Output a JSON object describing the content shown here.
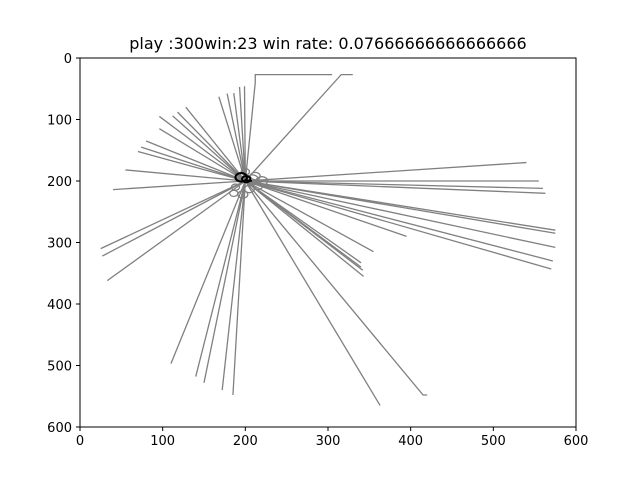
{
  "chart_data": {
    "type": "line",
    "title": "play :300win:23 win rate: 0.07666666666666666",
    "xlabel": "",
    "ylabel": "",
    "xlim": [
      0,
      600
    ],
    "ylim": [
      600,
      0
    ],
    "y_inverted": true,
    "grid": false,
    "legend": "none",
    "x_ticks": [
      "0",
      "100",
      "200",
      "300",
      "400",
      "500",
      "600"
    ],
    "y_ticks": [
      "0",
      "100",
      "200",
      "300",
      "400",
      "500",
      "600"
    ],
    "trajectory_color": "#808080",
    "highlight_color": "#000000",
    "center": [
      200,
      200
    ],
    "series": [
      {
        "x": [
          200,
          212,
          212,
          305
        ],
        "y": [
          200,
          40,
          27,
          27
        ]
      },
      {
        "x": [
          200,
          316,
          330
        ],
        "y": [
          200,
          27,
          27
        ]
      },
      {
        "x": [
          200,
          168
        ],
        "y": [
          200,
          63
        ]
      },
      {
        "x": [
          200,
          178
        ],
        "y": [
          200,
          58
        ]
      },
      {
        "x": [
          200,
          186
        ],
        "y": [
          200,
          57
        ]
      },
      {
        "x": [
          200,
          193
        ],
        "y": [
          200,
          47
        ]
      },
      {
        "x": [
          200,
          199
        ],
        "y": [
          200,
          46
        ]
      },
      {
        "x": [
          200,
          128
        ],
        "y": [
          200,
          80
        ]
      },
      {
        "x": [
          200,
          118
        ],
        "y": [
          200,
          88
        ]
      },
      {
        "x": [
          200,
          112
        ],
        "y": [
          200,
          94
        ]
      },
      {
        "x": [
          200,
          96
        ],
        "y": [
          200,
          95
        ]
      },
      {
        "x": [
          200,
          96
        ],
        "y": [
          200,
          115
        ]
      },
      {
        "x": [
          200,
          80
        ],
        "y": [
          200,
          135
        ]
      },
      {
        "x": [
          200,
          74
        ],
        "y": [
          200,
          145
        ]
      },
      {
        "x": [
          200,
          70
        ],
        "y": [
          200,
          152
        ]
      },
      {
        "x": [
          200,
          55
        ],
        "y": [
          200,
          182
        ]
      },
      {
        "x": [
          200,
          40
        ],
        "y": [
          200,
          214
        ]
      },
      {
        "x": [
          200,
          540
        ],
        "y": [
          200,
          170
        ]
      },
      {
        "x": [
          200,
          555
        ],
        "y": [
          200,
          200
        ]
      },
      {
        "x": [
          200,
          560
        ],
        "y": [
          200,
          212
        ]
      },
      {
        "x": [
          200,
          563
        ],
        "y": [
          200,
          220
        ]
      },
      {
        "x": [
          200,
          575
        ],
        "y": [
          200,
          280
        ]
      },
      {
        "x": [
          200,
          575
        ],
        "y": [
          200,
          285
        ]
      },
      {
        "x": [
          200,
          575
        ],
        "y": [
          200,
          308
        ]
      },
      {
        "x": [
          200,
          572
        ],
        "y": [
          200,
          330
        ]
      },
      {
        "x": [
          200,
          570
        ],
        "y": [
          200,
          343
        ]
      },
      {
        "x": [
          200,
          395
        ],
        "y": [
          200,
          290
        ]
      },
      {
        "x": [
          200,
          355
        ],
        "y": [
          200,
          315
        ]
      },
      {
        "x": [
          200,
          340
        ],
        "y": [
          200,
          333
        ]
      },
      {
        "x": [
          200,
          340
        ],
        "y": [
          200,
          340
        ]
      },
      {
        "x": [
          200,
          342
        ],
        "y": [
          200,
          345
        ]
      },
      {
        "x": [
          200,
          343
        ],
        "y": [
          200,
          355
        ]
      },
      {
        "x": [
          200,
          25
        ],
        "y": [
          200,
          310
        ]
      },
      {
        "x": [
          200,
          27
        ],
        "y": [
          200,
          322
        ]
      },
      {
        "x": [
          200,
          33
        ],
        "y": [
          200,
          362
        ]
      },
      {
        "x": [
          200,
          110
        ],
        "y": [
          200,
          497
        ]
      },
      {
        "x": [
          200,
          140
        ],
        "y": [
          200,
          518
        ]
      },
      {
        "x": [
          200,
          150
        ],
        "y": [
          200,
          528
        ]
      },
      {
        "x": [
          200,
          172
        ],
        "y": [
          200,
          540
        ]
      },
      {
        "x": [
          200,
          185
        ],
        "y": [
          200,
          548
        ]
      },
      {
        "x": [
          200,
          415,
          420
        ],
        "y": [
          200,
          548,
          548
        ]
      },
      {
        "x": [
          200,
          363
        ],
        "y": [
          200,
          565
        ]
      }
    ],
    "loops": [
      {
        "cx": 195,
        "cy": 195,
        "r": 7
      },
      {
        "cx": 212,
        "cy": 192,
        "r": 6
      },
      {
        "cx": 220,
        "cy": 200,
        "r": 7
      },
      {
        "cx": 215,
        "cy": 208,
        "r": 6
      },
      {
        "cx": 205,
        "cy": 213,
        "r": 6
      },
      {
        "cx": 188,
        "cy": 210,
        "r": 5
      },
      {
        "cx": 186,
        "cy": 220,
        "r": 5
      },
      {
        "cx": 197,
        "cy": 222,
        "r": 6
      },
      {
        "cx": 200,
        "cy": 185,
        "r": 5
      },
      {
        "cx": 208,
        "cy": 198,
        "r": 8
      }
    ],
    "highlight_loops": [
      {
        "cx": 195,
        "cy": 194,
        "r": 7
      },
      {
        "cx": 201,
        "cy": 197,
        "r": 5
      }
    ],
    "highlight_path": {
      "x": [
        200,
        208
      ],
      "y": [
        198,
        200
      ]
    }
  }
}
